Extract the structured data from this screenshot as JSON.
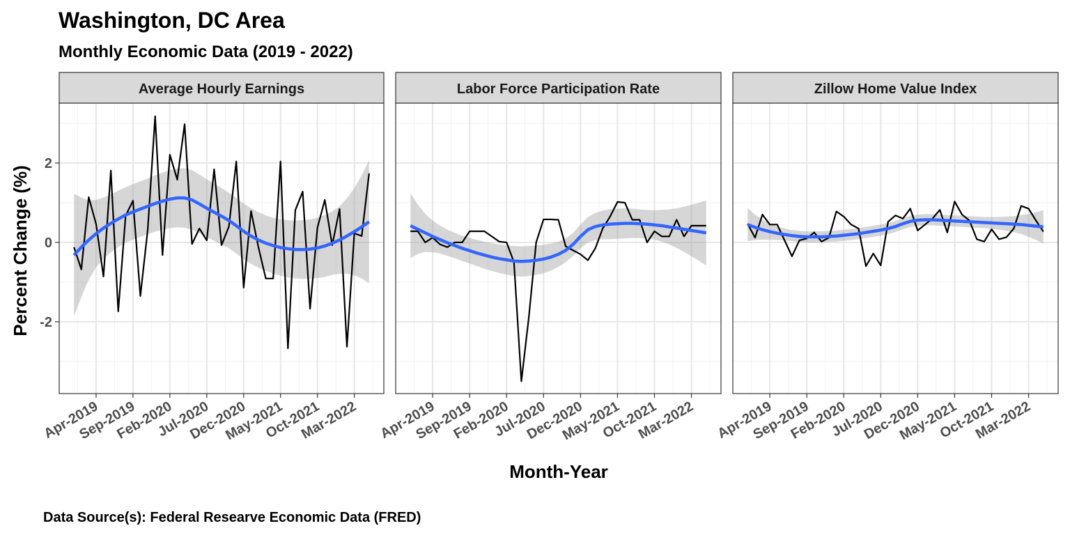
{
  "title": "Washington, DC Area",
  "subtitle": "Monthly Economic Data (2019 - 2022)",
  "x_label": "Month-Year",
  "y_label": "Percent Change (%)",
  "caption": "Data Source(s): Federal Researve Economic Data (FRED)",
  "chart_data": [
    {
      "type": "line",
      "title": "Average Hourly Earnings",
      "x": [
        "2019-01",
        "2019-02",
        "2019-03",
        "2019-04",
        "2019-05",
        "2019-06",
        "2019-07",
        "2019-08",
        "2019-09",
        "2019-10",
        "2019-11",
        "2019-12",
        "2020-01",
        "2020-02",
        "2020-03",
        "2020-04",
        "2020-05",
        "2020-06",
        "2020-07",
        "2020-08",
        "2020-09",
        "2020-10",
        "2020-11",
        "2020-12",
        "2021-01",
        "2021-02",
        "2021-03",
        "2021-04",
        "2021-05",
        "2021-06",
        "2021-07",
        "2021-08",
        "2021-09",
        "2021-10",
        "2021-11",
        "2021-12",
        "2022-01",
        "2022-02",
        "2022-03",
        "2022-04",
        "2022-05"
      ],
      "xlim": [
        "2018-11",
        "2022-07"
      ],
      "xticks": [
        {
          "value": "2019-04",
          "label": "Apr-2019"
        },
        {
          "value": "2019-09",
          "label": "Sep-2019"
        },
        {
          "value": "2020-02",
          "label": "Feb-2020"
        },
        {
          "value": "2020-07",
          "label": "Jul-2020"
        },
        {
          "value": "2020-12",
          "label": "Dec-2020"
        },
        {
          "value": "2021-05",
          "label": "May-2021"
        },
        {
          "value": "2021-10",
          "label": "Oct-2021"
        },
        {
          "value": "2022-03",
          "label": "Mar-2022"
        }
      ],
      "ylim": [
        -3.81,
        3.51
      ],
      "yticks": [
        -2,
        0,
        2
      ],
      "grid": true,
      "series": [
        {
          "color": "#000000",
          "values": [
            -0.12,
            -0.68,
            1.14,
            0.46,
            -0.86,
            1.81,
            -1.74,
            0.67,
            1.05,
            -1.35,
            0.32,
            3.18,
            -0.32,
            2.21,
            1.58,
            2.98,
            -0.04,
            0.35,
            0.05,
            1.84,
            -0.07,
            0.4,
            2.04,
            -1.14,
            0.79,
            -0.12,
            -0.91,
            -0.91,
            2.04,
            -2.67,
            0.81,
            1.28,
            -1.67,
            0.37,
            1.07,
            -0.07,
            0.84,
            -2.63,
            0.23,
            0.16,
            1.74
          ]
        },
        {
          "color": "#3366ff",
          "values": [
            -0.32,
            -0.12,
            0.06,
            0.22,
            0.36,
            0.48,
            0.59,
            0.69,
            0.77,
            0.84,
            0.91,
            0.98,
            1.04,
            1.09,
            1.12,
            1.12,
            1.07,
            0.97,
            0.86,
            0.76,
            0.66,
            0.55,
            0.42,
            0.28,
            0.16,
            0.06,
            -0.02,
            -0.08,
            -0.13,
            -0.16,
            -0.18,
            -0.18,
            -0.17,
            -0.14,
            -0.09,
            -0.02,
            0.06,
            0.16,
            0.27,
            0.39,
            0.52
          ]
        }
      ],
      "band": {
        "color": "#999999",
        "lower": [
          -1.87,
          -1.37,
          -0.94,
          -0.63,
          -0.41,
          -0.25,
          -0.12,
          -0.01,
          0.07,
          0.14,
          0.21,
          0.27,
          0.32,
          0.36,
          0.38,
          0.37,
          0.32,
          0.23,
          0.13,
          0.04,
          -0.05,
          -0.15,
          -0.28,
          -0.42,
          -0.54,
          -0.64,
          -0.72,
          -0.78,
          -0.84,
          -0.88,
          -0.91,
          -0.92,
          -0.92,
          -0.9,
          -0.87,
          -0.82,
          -0.79,
          -0.79,
          -0.83,
          -0.91,
          -1.03
        ],
        "upper": [
          1.23,
          1.13,
          1.06,
          1.07,
          1.13,
          1.21,
          1.3,
          1.39,
          1.47,
          1.54,
          1.61,
          1.69,
          1.76,
          1.82,
          1.86,
          1.87,
          1.82,
          1.71,
          1.59,
          1.48,
          1.37,
          1.25,
          1.12,
          0.98,
          0.86,
          0.76,
          0.68,
          0.62,
          0.58,
          0.56,
          0.55,
          0.56,
          0.58,
          0.62,
          0.69,
          0.78,
          0.91,
          1.11,
          1.37,
          1.69,
          2.07
        ]
      }
    },
    {
      "type": "line",
      "title": "Labor Force Participation Rate",
      "x": [
        "2019-01",
        "2019-02",
        "2019-03",
        "2019-04",
        "2019-05",
        "2019-06",
        "2019-07",
        "2019-08",
        "2019-09",
        "2019-10",
        "2019-11",
        "2019-12",
        "2020-01",
        "2020-02",
        "2020-03",
        "2020-04",
        "2020-05",
        "2020-06",
        "2020-07",
        "2020-08",
        "2020-09",
        "2020-10",
        "2020-11",
        "2020-12",
        "2021-01",
        "2021-02",
        "2021-03",
        "2021-04",
        "2021-05",
        "2021-06",
        "2021-07",
        "2021-08",
        "2021-09",
        "2021-10",
        "2021-11",
        "2021-12",
        "2022-01",
        "2022-02",
        "2022-03",
        "2022-04",
        "2022-05"
      ],
      "xlim": [
        "2018-11",
        "2022-07"
      ],
      "xticks": [
        {
          "value": "2019-04",
          "label": "Apr-2019"
        },
        {
          "value": "2019-09",
          "label": "Sep-2019"
        },
        {
          "value": "2020-02",
          "label": "Feb-2020"
        },
        {
          "value": "2020-07",
          "label": "Jul-2020"
        },
        {
          "value": "2020-12",
          "label": "Dec-2020"
        },
        {
          "value": "2021-05",
          "label": "May-2021"
        },
        {
          "value": "2021-10",
          "label": "Oct-2021"
        },
        {
          "value": "2022-03",
          "label": "Mar-2022"
        }
      ],
      "ylim": [
        -3.81,
        3.51
      ],
      "yticks": [
        -2,
        0,
        2
      ],
      "grid": true,
      "series": [
        {
          "color": "#000000",
          "values": [
            0.28,
            0.28,
            0.0,
            0.12,
            -0.05,
            -0.12,
            0.0,
            0.0,
            0.28,
            0.28,
            0.28,
            0.15,
            0.02,
            0.0,
            -0.5,
            -3.5,
            -1.9,
            0.0,
            0.58,
            0.58,
            0.57,
            -0.1,
            -0.2,
            -0.3,
            -0.45,
            -0.15,
            0.35,
            0.65,
            1.02,
            1.0,
            0.57,
            0.57,
            0.0,
            0.28,
            0.15,
            0.15,
            0.57,
            0.15,
            0.42,
            0.42,
            0.42
          ]
        },
        {
          "color": "#3366ff",
          "values": [
            0.42,
            0.33,
            0.24,
            0.15,
            0.07,
            -0.01,
            -0.08,
            -0.15,
            -0.21,
            -0.27,
            -0.32,
            -0.37,
            -0.41,
            -0.44,
            -0.47,
            -0.48,
            -0.47,
            -0.45,
            -0.42,
            -0.37,
            -0.3,
            -0.2,
            -0.05,
            0.15,
            0.32,
            0.4,
            0.44,
            0.46,
            0.47,
            0.48,
            0.48,
            0.47,
            0.46,
            0.44,
            0.42,
            0.39,
            0.36,
            0.33,
            0.3,
            0.27,
            0.24
          ]
        }
      ],
      "band": {
        "color": "#999999",
        "lower": [
          -0.4,
          -0.29,
          -0.24,
          -0.25,
          -0.28,
          -0.34,
          -0.4,
          -0.47,
          -0.53,
          -0.6,
          -0.66,
          -0.72,
          -0.77,
          -0.81,
          -0.85,
          -0.86,
          -0.85,
          -0.82,
          -0.78,
          -0.71,
          -0.62,
          -0.5,
          -0.34,
          -0.15,
          0.0,
          0.06,
          0.08,
          0.08,
          0.09,
          0.1,
          0.11,
          0.11,
          0.1,
          0.07,
          0.02,
          -0.05,
          -0.14,
          -0.24,
          -0.35,
          -0.46,
          -0.58
        ],
        "upper": [
          1.24,
          0.95,
          0.72,
          0.55,
          0.42,
          0.32,
          0.24,
          0.17,
          0.11,
          0.06,
          0.02,
          -0.02,
          -0.05,
          -0.07,
          -0.09,
          -0.1,
          -0.09,
          -0.08,
          -0.06,
          -0.03,
          0.02,
          0.1,
          0.24,
          0.45,
          0.64,
          0.74,
          0.8,
          0.84,
          0.85,
          0.86,
          0.85,
          0.83,
          0.82,
          0.81,
          0.82,
          0.83,
          0.86,
          0.9,
          0.95,
          1.0,
          1.06
        ]
      }
    },
    {
      "type": "line",
      "title": "Zillow Home Value Index",
      "x": [
        "2019-01",
        "2019-02",
        "2019-03",
        "2019-04",
        "2019-05",
        "2019-06",
        "2019-07",
        "2019-08",
        "2019-09",
        "2019-10",
        "2019-11",
        "2019-12",
        "2020-01",
        "2020-02",
        "2020-03",
        "2020-04",
        "2020-05",
        "2020-06",
        "2020-07",
        "2020-08",
        "2020-09",
        "2020-10",
        "2020-11",
        "2020-12",
        "2021-01",
        "2021-02",
        "2021-03",
        "2021-04",
        "2021-05",
        "2021-06",
        "2021-07",
        "2021-08",
        "2021-09",
        "2021-10",
        "2021-11",
        "2021-12",
        "2022-01",
        "2022-02",
        "2022-03",
        "2022-04",
        "2022-05"
      ],
      "xlim": [
        "2018-11",
        "2022-07"
      ],
      "xticks": [
        {
          "value": "2019-04",
          "label": "Apr-2019"
        },
        {
          "value": "2019-09",
          "label": "Sep-2019"
        },
        {
          "value": "2020-02",
          "label": "Feb-2020"
        },
        {
          "value": "2020-07",
          "label": "Jul-2020"
        },
        {
          "value": "2020-12",
          "label": "Dec-2020"
        },
        {
          "value": "2021-05",
          "label": "May-2021"
        },
        {
          "value": "2021-10",
          "label": "Oct-2021"
        },
        {
          "value": "2022-03",
          "label": "Mar-2022"
        }
      ],
      "ylim": [
        -3.81,
        3.51
      ],
      "yticks": [
        -2,
        0,
        2
      ],
      "grid": true,
      "series": [
        {
          "color": "#000000",
          "values": [
            0.47,
            0.12,
            0.7,
            0.45,
            0.45,
            0.05,
            -0.35,
            0.05,
            0.1,
            0.25,
            0.02,
            0.12,
            0.78,
            0.65,
            0.45,
            0.35,
            -0.6,
            -0.28,
            -0.58,
            0.52,
            0.68,
            0.6,
            0.85,
            0.3,
            0.45,
            0.6,
            0.82,
            0.25,
            1.03,
            0.7,
            0.55,
            0.08,
            0.02,
            0.33,
            0.08,
            0.13,
            0.35,
            0.92,
            0.85,
            0.55,
            0.27
          ]
        },
        {
          "color": "#3366ff",
          "values": [
            0.45,
            0.38,
            0.32,
            0.27,
            0.23,
            0.2,
            0.17,
            0.15,
            0.14,
            0.14,
            0.14,
            0.15,
            0.16,
            0.18,
            0.2,
            0.22,
            0.25,
            0.28,
            0.31,
            0.35,
            0.4,
            0.47,
            0.53,
            0.56,
            0.57,
            0.57,
            0.56,
            0.55,
            0.54,
            0.53,
            0.52,
            0.51,
            0.5,
            0.49,
            0.48,
            0.47,
            0.46,
            0.45,
            0.43,
            0.41,
            0.39
          ]
        }
      ],
      "band": {
        "color": "#999999",
        "lower": [
          0.03,
          0.06,
          0.07,
          0.07,
          0.06,
          0.05,
          0.03,
          0.01,
          0.0,
          0.0,
          0.0,
          0.01,
          0.02,
          0.04,
          0.06,
          0.08,
          0.11,
          0.14,
          0.17,
          0.21,
          0.26,
          0.33,
          0.39,
          0.42,
          0.43,
          0.43,
          0.42,
          0.41,
          0.4,
          0.39,
          0.38,
          0.37,
          0.36,
          0.34,
          0.32,
          0.29,
          0.26,
          0.21,
          0.14,
          0.06,
          -0.03
        ],
        "upper": [
          0.87,
          0.7,
          0.57,
          0.47,
          0.4,
          0.35,
          0.31,
          0.29,
          0.28,
          0.28,
          0.28,
          0.29,
          0.3,
          0.32,
          0.34,
          0.36,
          0.39,
          0.42,
          0.45,
          0.49,
          0.54,
          0.61,
          0.67,
          0.7,
          0.71,
          0.71,
          0.7,
          0.69,
          0.68,
          0.67,
          0.66,
          0.65,
          0.64,
          0.64,
          0.64,
          0.65,
          0.66,
          0.69,
          0.72,
          0.76,
          0.81
        ]
      }
    }
  ]
}
